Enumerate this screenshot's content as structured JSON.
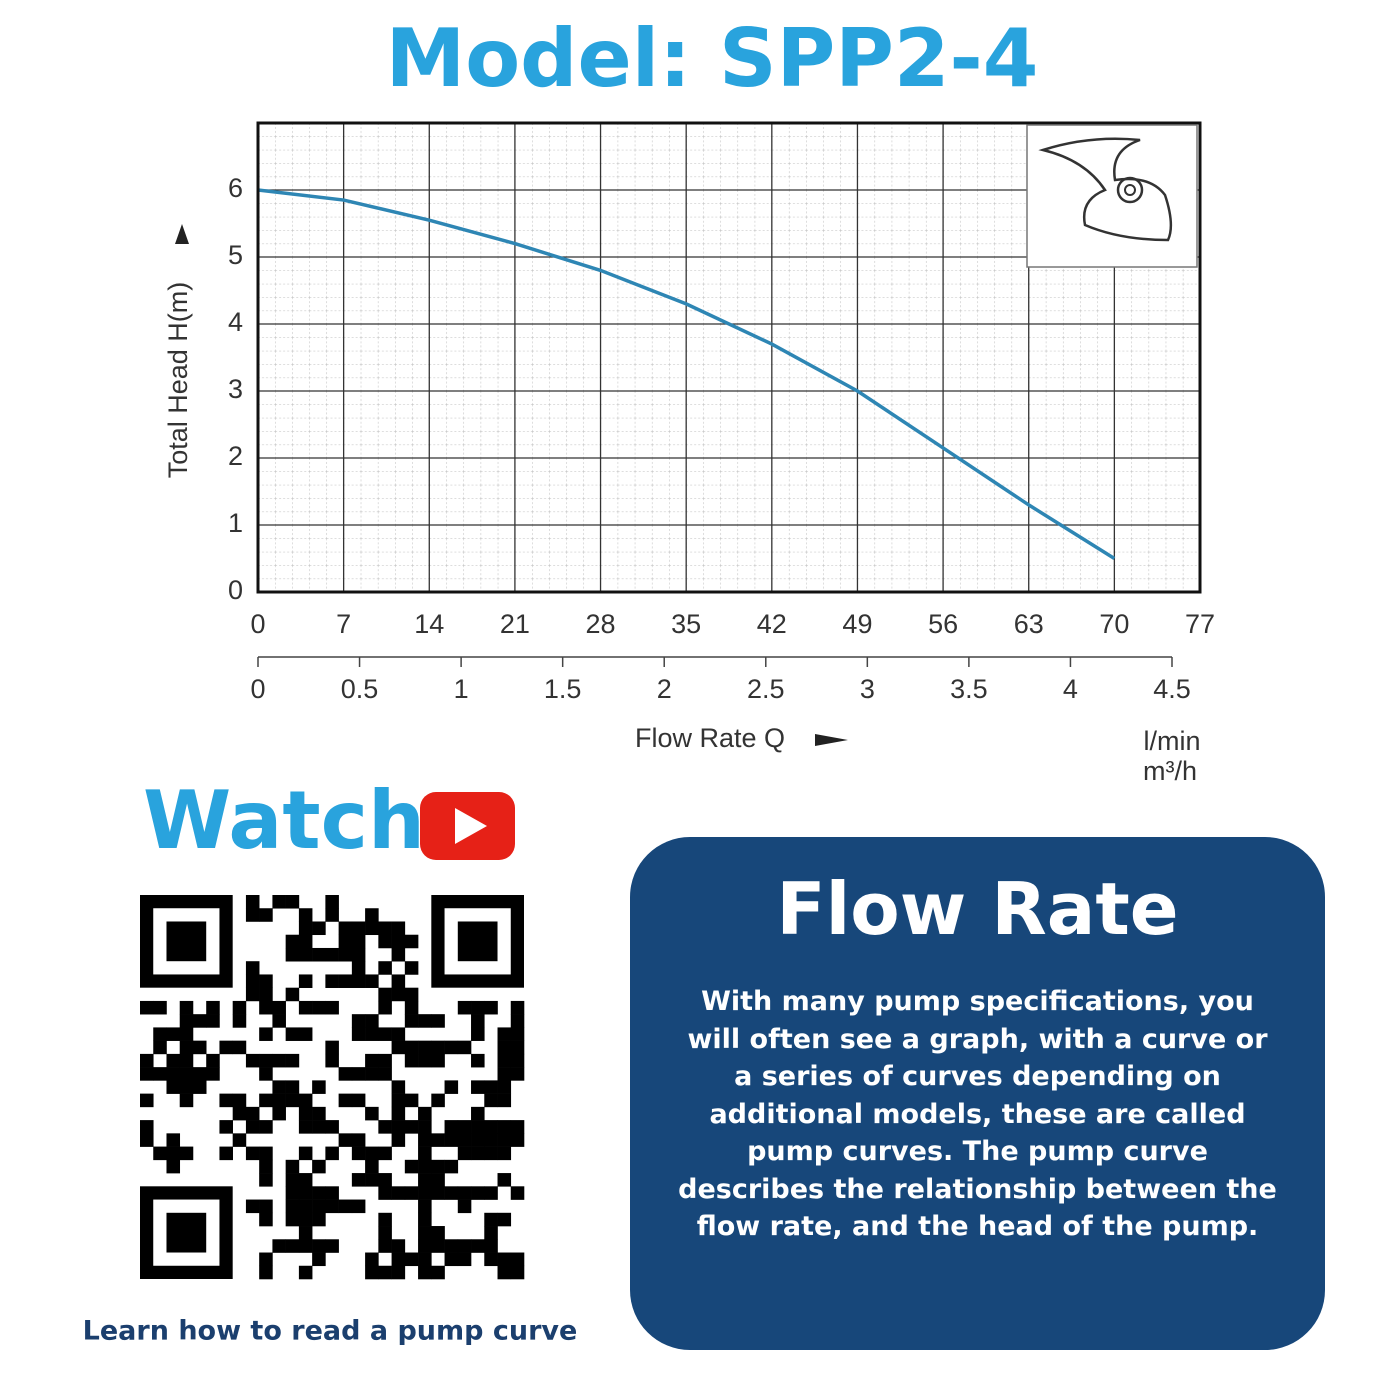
{
  "header": {
    "title": "Model: SPP2-4"
  },
  "chart_data": {
    "type": "line",
    "ylabel": "Total Head H(m)",
    "xlabel": "Flow Rate Q",
    "xunit": "l/min",
    "x2unit": "m³/h",
    "x": [
      0,
      7,
      14,
      21,
      28,
      35,
      42,
      49,
      56,
      63,
      70
    ],
    "values": [
      6.0,
      5.85,
      5.55,
      5.2,
      4.8,
      4.3,
      3.7,
      3.0,
      2.15,
      1.3,
      0.5
    ],
    "color": "#2e86b4",
    "xlim": [
      0,
      77
    ],
    "xticks": [
      0,
      7,
      14,
      21,
      28,
      35,
      42,
      49,
      56,
      63,
      70,
      77
    ],
    "x2lim": [
      0,
      4.5
    ],
    "x2ticks": [
      0,
      0.5,
      1,
      1.5,
      2,
      2.5,
      3,
      3.5,
      4,
      4.5
    ],
    "ylim": [
      0,
      7
    ],
    "yticks": [
      0,
      1,
      2,
      3,
      4,
      5,
      6
    ],
    "grid": true
  },
  "video": {
    "heading": "Watch",
    "caption": "Learn how to read a pump curve"
  },
  "info": {
    "title": "Flow Rate",
    "text": "With many pump specifications, you will often see a graph, with a curve or a series of curves depending on additional models, these are called pump curves. The pump curve describes the relationship between the flow rate, and the head of the pump."
  }
}
